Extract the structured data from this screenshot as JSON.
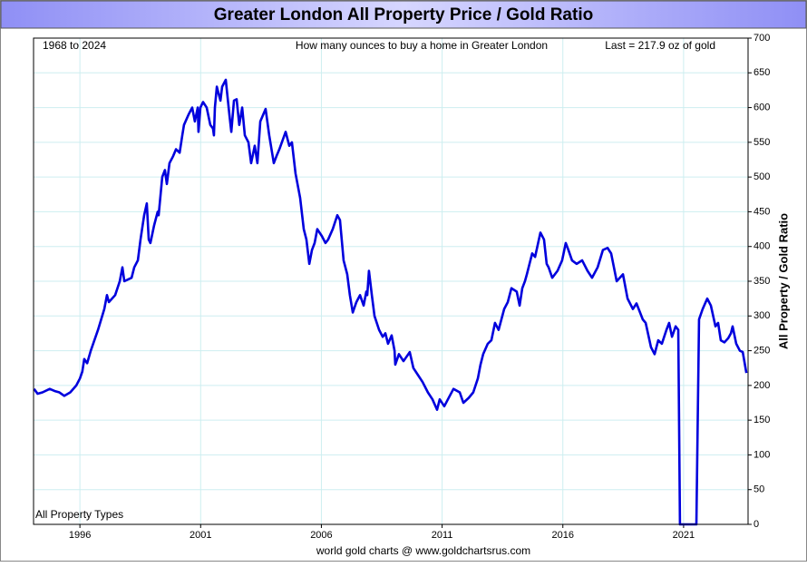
{
  "chart_data": {
    "type": "line",
    "title": "Greater London All Property Price / Gold Ratio",
    "annotations": [
      "1968 to 2024",
      "How many ounces to buy a home in Greater London",
      "Last = 217.9 oz of gold",
      "All Property Types"
    ],
    "y_label": "All Property / Gold Ratio",
    "footer": "world gold charts @ www.goldchartsrus.com",
    "xlim": [
      1994.08,
      2023.67
    ],
    "xticks": [
      1996,
      2001,
      2006,
      2011,
      2016,
      2021
    ],
    "ylim": [
      0,
      700
    ],
    "yticks": [
      0,
      50,
      100,
      150,
      200,
      250,
      300,
      350,
      400,
      450,
      500,
      550,
      600,
      650,
      700
    ],
    "y_axis_side": "right",
    "grid": true,
    "series": [
      {
        "name": "All Property / Gold Ratio",
        "color": "#0000dd",
        "x": [
          1994.1,
          1994.25,
          1994.45,
          1994.75,
          1994.95,
          1995.15,
          1995.35,
          1995.6,
          1995.85,
          1996.0,
          1996.1,
          1996.18,
          1996.3,
          1996.45,
          1996.75,
          1997.01,
          1997.12,
          1997.2,
          1997.46,
          1997.65,
          1997.76,
          1997.84,
          1998.14,
          1998.25,
          1998.4,
          1998.51,
          1998.66,
          1998.77,
          1998.85,
          1998.92,
          1999.07,
          1999.22,
          1999.26,
          1999.41,
          1999.52,
          1999.6,
          1999.71,
          1999.86,
          1999.98,
          2000.13,
          2000.24,
          2000.31,
          2000.5,
          2000.65,
          2000.76,
          2000.88,
          2000.91,
          2000.99,
          2001.1,
          2001.25,
          2001.4,
          2001.51,
          2001.55,
          2001.59,
          2001.67,
          2001.82,
          2001.89,
          2002.04,
          2002.19,
          2002.27,
          2002.38,
          2002.49,
          2002.6,
          2002.72,
          2002.83,
          2002.98,
          2003.09,
          2003.24,
          2003.35,
          2003.47,
          2003.69,
          2003.84,
          2004.03,
          2004.14,
          2004.26,
          2004.52,
          2004.67,
          2004.78,
          2004.93,
          2005.12,
          2005.27,
          2005.38,
          2005.5,
          2005.61,
          2005.72,
          2005.83,
          2006.02,
          2006.17,
          2006.28,
          2006.47,
          2006.66,
          2006.77,
          2006.92,
          2007.07,
          2007.18,
          2007.3,
          2007.45,
          2007.6,
          2007.75,
          2007.86,
          2007.9,
          2007.97,
          2008.09,
          2008.2,
          2008.39,
          2008.54,
          2008.65,
          2008.76,
          2008.91,
          2009.03,
          2009.06,
          2009.21,
          2009.4,
          2009.66,
          2009.81,
          2010.0,
          2010.19,
          2010.41,
          2010.6,
          2010.79,
          2010.9,
          2011.09,
          2011.24,
          2011.47,
          2011.73,
          2011.88,
          2012.1,
          2012.29,
          2012.48,
          2012.59,
          2012.7,
          2012.89,
          2013.04,
          2013.19,
          2013.34,
          2013.57,
          2013.72,
          2013.87,
          2014.09,
          2014.21,
          2014.32,
          2014.43,
          2014.51,
          2014.62,
          2014.73,
          2014.85,
          2015.07,
          2015.22,
          2015.33,
          2015.41,
          2015.56,
          2015.78,
          2015.97,
          2016.12,
          2016.23,
          2016.38,
          2016.57,
          2016.8,
          2017.02,
          2017.21,
          2017.44,
          2017.66,
          2017.85,
          2018.0,
          2018.23,
          2018.49,
          2018.68,
          2018.9,
          2019.05,
          2019.31,
          2019.43,
          2019.65,
          2019.8,
          2019.95,
          2020.1,
          2020.29,
          2020.4,
          2020.52,
          2020.67,
          2020.78,
          2020.85,
          2021.53,
          2021.64,
          2021.79,
          2021.98,
          2022.13,
          2022.32,
          2022.43,
          2022.54,
          2022.69,
          2022.85,
          2022.96,
          2023.03,
          2023.18,
          2023.33,
          2023.45,
          2023.6
        ],
        "values": [
          195,
          188,
          190,
          195,
          192,
          190,
          185,
          190,
          200,
          210,
          220,
          238,
          232,
          250,
          280,
          310,
          330,
          320,
          330,
          350,
          370,
          350,
          355,
          370,
          380,
          410,
          445,
          462,
          410,
          405,
          430,
          450,
          445,
          500,
          510,
          490,
          520,
          530,
          540,
          535,
          560,
          575,
          590,
          600,
          580,
          600,
          565,
          600,
          608,
          600,
          575,
          570,
          560,
          600,
          630,
          610,
          630,
          640,
          590,
          565,
          610,
          612,
          575,
          600,
          560,
          550,
          520,
          545,
          520,
          580,
          598,
          560,
          520,
          530,
          540,
          565,
          545,
          550,
          505,
          470,
          425,
          410,
          375,
          395,
          405,
          425,
          415,
          405,
          410,
          425,
          445,
          438,
          380,
          360,
          330,
          305,
          320,
          330,
          315,
          335,
          330,
          365,
          330,
          300,
          280,
          270,
          275,
          260,
          272,
          250,
          230,
          245,
          235,
          248,
          225,
          215,
          205,
          190,
          180,
          165,
          180,
          170,
          180,
          195,
          190,
          175,
          182,
          190,
          210,
          230,
          245,
          260,
          265,
          290,
          280,
          310,
          320,
          340,
          335,
          315,
          340,
          350,
          360,
          375,
          390,
          385,
          420,
          410,
          375,
          370,
          355,
          365,
          380,
          405,
          395,
          380,
          375,
          380,
          365,
          355,
          370,
          395,
          398,
          390,
          350,
          360,
          325,
          310,
          318,
          295,
          290,
          255,
          245,
          265,
          260,
          280,
          290,
          270,
          285,
          280,
          0,
          0,
          295,
          310,
          325,
          315,
          285,
          290,
          265,
          262,
          268,
          275,
          285,
          260,
          250,
          248,
          217.9
        ]
      }
    ]
  }
}
